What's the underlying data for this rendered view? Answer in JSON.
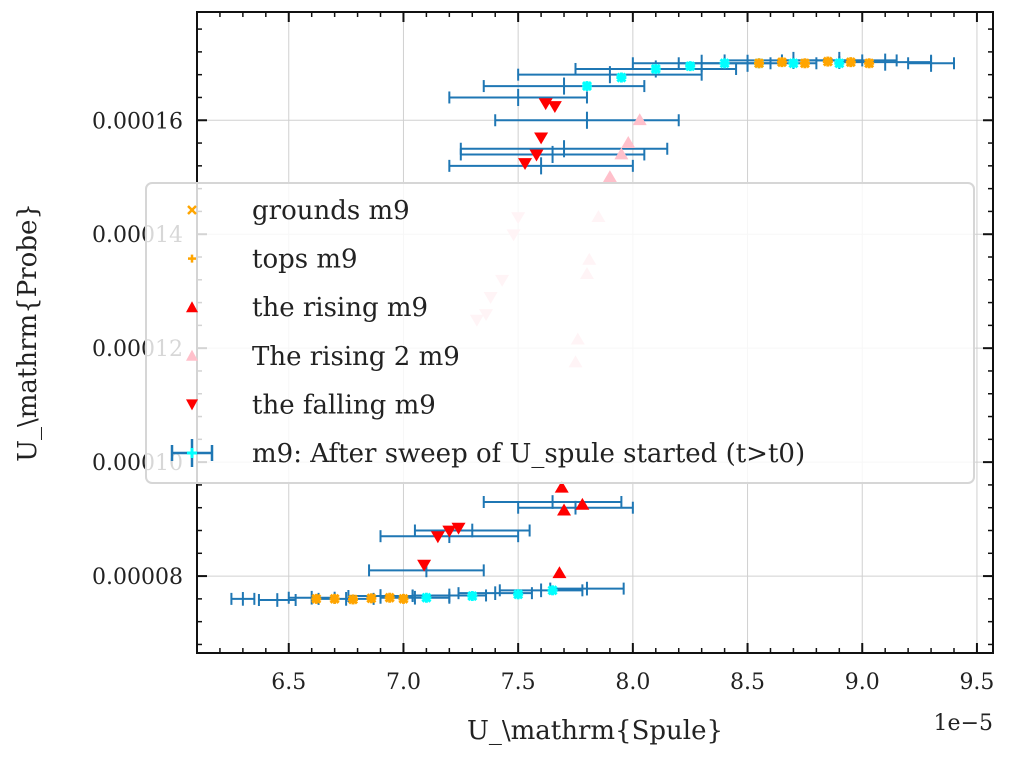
{
  "chart_data": {
    "type": "scatter",
    "title": "",
    "xlabel": "U_\\mathrm{Spule}",
    "ylabel": "U_\\mathrm{Probe}",
    "x_offset_label": "1e−5",
    "xlim": [
      6.1,
      9.57
    ],
    "ylim": [
      6.65e-05,
      0.000179
    ],
    "x_ticks": [
      6.5,
      7.0,
      7.5,
      8.0,
      8.5,
      9.0,
      9.5
    ],
    "x_tick_labels": [
      "6.5",
      "7.0",
      "7.5",
      "8.0",
      "8.5",
      "9.0",
      "9.5"
    ],
    "y_ticks": [
      8e-05,
      0.0001,
      0.00012,
      0.00014,
      0.00016
    ],
    "y_tick_labels": [
      "0.00008",
      "0.00010",
      "0.00012",
      "0.00014",
      "0.00016"
    ],
    "grid": true,
    "legend_position": "center-left",
    "colors": {
      "errorbar": "#1f77b4",
      "errorbar_faded": "#cfe0ee",
      "cyan_marker": "#00ffff",
      "grounds": "#ffa500",
      "tops": "#ffa500",
      "rising": "#ff0000",
      "rising2": "#ffc0cb",
      "falling": "#ff0000"
    },
    "legend": [
      {
        "label": "grounds m9",
        "marker": "x",
        "color": "#ffa500"
      },
      {
        "label": "tops m9",
        "marker": "plus",
        "color": "#ffa500"
      },
      {
        "label": "the rising m9",
        "marker": "triangle-up",
        "color": "#ff0000"
      },
      {
        "label": "The rising 2 m9",
        "marker": "triangle-up",
        "color": "#ffc0cb"
      },
      {
        "label": "the falling m9",
        "marker": "triangle-down",
        "color": "#ff0000"
      },
      {
        "label": "m9: After sweep of U_spule started (t>t0)",
        "marker": "errorbar",
        "color": "#1f77b4"
      }
    ],
    "series": [
      {
        "name": "m9: After sweep of U_spule started (t>t0)",
        "kind": "errorbar",
        "points": [
          {
            "x": 6.3,
            "y": 7.6e-05,
            "xerr": 0.05,
            "yerr": 1.2e-06
          },
          {
            "x": 6.45,
            "y": 7.58e-05,
            "xerr": 0.08,
            "yerr": 1.2e-06
          },
          {
            "x": 6.6,
            "y": 7.62e-05,
            "xerr": 0.1,
            "yerr": 1.2e-06
          },
          {
            "x": 6.75,
            "y": 7.6e-05,
            "xerr": 0.12,
            "yerr": 1.2e-06
          },
          {
            "x": 6.9,
            "y": 7.65e-05,
            "xerr": 0.14,
            "yerr": 1.2e-06
          },
          {
            "x": 7.05,
            "y": 7.62e-05,
            "xerr": 0.15,
            "yerr": 1.2e-06
          },
          {
            "x": 7.2,
            "y": 7.66e-05,
            "xerr": 0.16,
            "yerr": 1.2e-06
          },
          {
            "x": 7.4,
            "y": 7.7e-05,
            "xerr": 0.16,
            "yerr": 1.2e-06
          },
          {
            "x": 7.6,
            "y": 7.75e-05,
            "xerr": 0.18,
            "yerr": 1.2e-06
          },
          {
            "x": 7.8,
            "y": 7.78e-05,
            "xerr": 0.16,
            "yerr": 1.2e-06
          },
          {
            "x": 7.1,
            "y": 8.1e-05,
            "xerr": 0.25,
            "yerr": 1.2e-06
          },
          {
            "x": 7.2,
            "y": 8.7e-05,
            "xerr": 0.3,
            "yerr": 1.2e-06
          },
          {
            "x": 7.3,
            "y": 8.8e-05,
            "xerr": 0.25,
            "yerr": 1.2e-06
          },
          {
            "x": 7.65,
            "y": 9.3e-05,
            "xerr": 0.3,
            "yerr": 1.2e-06
          },
          {
            "x": 7.75,
            "y": 9.2e-05,
            "xerr": 0.25,
            "yerr": 1.2e-06
          },
          {
            "x": 7.5,
            "y": 0.000164,
            "xerr": 0.3,
            "yerr": 1.5e-06
          },
          {
            "x": 7.7,
            "y": 0.000166,
            "xerr": 0.35,
            "yerr": 1.5e-06
          },
          {
            "x": 7.9,
            "y": 0.000168,
            "xerr": 0.4,
            "yerr": 1.5e-06
          },
          {
            "x": 8.1,
            "y": 0.000169,
            "xerr": 0.35,
            "yerr": 1.5e-06
          },
          {
            "x": 8.3,
            "y": 0.00017,
            "xerr": 0.3,
            "yerr": 1.5e-06
          },
          {
            "x": 8.5,
            "y": 0.00017,
            "xerr": 0.3,
            "yerr": 1.5e-06
          },
          {
            "x": 8.7,
            "y": 0.0001705,
            "xerr": 0.3,
            "yerr": 1.5e-06
          },
          {
            "x": 8.9,
            "y": 0.0001705,
            "xerr": 0.25,
            "yerr": 1.5e-06
          },
          {
            "x": 9.1,
            "y": 0.0001702,
            "xerr": 0.2,
            "yerr": 1.5e-06
          },
          {
            "x": 9.3,
            "y": 0.00017,
            "xerr": 0.1,
            "yerr": 1.5e-06
          },
          {
            "x": 7.8,
            "y": 0.00016,
            "xerr": 0.4,
            "yerr": 1.5e-06
          },
          {
            "x": 7.7,
            "y": 0.000155,
            "xerr": 0.45,
            "yerr": 1.5e-06
          },
          {
            "x": 7.6,
            "y": 0.000152,
            "xerr": 0.4,
            "yerr": 1.5e-06
          },
          {
            "x": 7.65,
            "y": 0.000154,
            "xerr": 0.4,
            "yerr": 1.5e-06
          }
        ]
      },
      {
        "name": "cyan",
        "kind": "marker",
        "points": [
          {
            "x": 7.1,
            "y": 7.62e-05
          },
          {
            "x": 7.3,
            "y": 7.65e-05
          },
          {
            "x": 7.5,
            "y": 7.68e-05
          },
          {
            "x": 7.65,
            "y": 7.75e-05
          },
          {
            "x": 7.8,
            "y": 0.000166
          },
          {
            "x": 7.95,
            "y": 0.0001675
          },
          {
            "x": 8.1,
            "y": 0.000169
          },
          {
            "x": 8.25,
            "y": 0.0001695
          },
          {
            "x": 8.4,
            "y": 0.00017
          },
          {
            "x": 8.55,
            "y": 0.00017
          },
          {
            "x": 8.7,
            "y": 0.00017
          },
          {
            "x": 8.9,
            "y": 0.00017
          }
        ]
      },
      {
        "name": "grounds m9",
        "kind": "marker",
        "points": [
          {
            "x": 6.62,
            "y": 7.6e-05
          },
          {
            "x": 6.7,
            "y": 7.6e-05
          },
          {
            "x": 6.78,
            "y": 7.59e-05
          },
          {
            "x": 6.86,
            "y": 7.61e-05
          },
          {
            "x": 6.94,
            "y": 7.62e-05
          },
          {
            "x": 7.0,
            "y": 7.6e-05
          },
          {
            "x": 8.55,
            "y": 0.00017
          },
          {
            "x": 8.65,
            "y": 0.0001702
          },
          {
            "x": 8.75,
            "y": 0.00017
          },
          {
            "x": 8.85,
            "y": 0.0001703
          },
          {
            "x": 8.95,
            "y": 0.0001702
          },
          {
            "x": 9.03,
            "y": 0.00017
          }
        ]
      },
      {
        "name": "the rising m9",
        "kind": "marker",
        "points": [
          {
            "x": 7.68,
            "y": 8.05e-05
          },
          {
            "x": 7.69,
            "y": 9.55e-05
          },
          {
            "x": 7.7,
            "y": 9.15e-05
          },
          {
            "x": 7.78,
            "y": 9.25e-05
          }
        ]
      },
      {
        "name": "The rising 2 m9",
        "kind": "marker",
        "points": [
          {
            "x": 7.75,
            "y": 0.0001175
          },
          {
            "x": 7.76,
            "y": 0.0001215
          },
          {
            "x": 7.8,
            "y": 0.000133
          },
          {
            "x": 7.81,
            "y": 0.0001355
          },
          {
            "x": 7.85,
            "y": 0.000143
          },
          {
            "x": 7.9,
            "y": 0.00015
          },
          {
            "x": 7.95,
            "y": 0.000154
          },
          {
            "x": 7.98,
            "y": 0.000156
          },
          {
            "x": 8.03,
            "y": 0.00016
          }
        ]
      },
      {
        "name": "the falling m9",
        "kind": "marker",
        "points": [
          {
            "x": 7.09,
            "y": 8.2e-05
          },
          {
            "x": 7.15,
            "y": 8.7e-05
          },
          {
            "x": 7.2,
            "y": 8.8e-05
          },
          {
            "x": 7.24,
            "y": 8.85e-05
          },
          {
            "x": 7.53,
            "y": 0.0001525
          },
          {
            "x": 7.58,
            "y": 0.000154
          },
          {
            "x": 7.6,
            "y": 0.000157
          },
          {
            "x": 7.62,
            "y": 0.000163
          },
          {
            "x": 7.66,
            "y": 0.0001625
          }
        ]
      },
      {
        "name": "falling faded",
        "kind": "marker",
        "points": [
          {
            "x": 7.32,
            "y": 0.000125
          },
          {
            "x": 7.36,
            "y": 0.000126
          },
          {
            "x": 7.38,
            "y": 0.000129
          },
          {
            "x": 7.43,
            "y": 0.000132
          },
          {
            "x": 7.48,
            "y": 0.00014
          },
          {
            "x": 7.5,
            "y": 0.000143
          }
        ]
      }
    ]
  }
}
